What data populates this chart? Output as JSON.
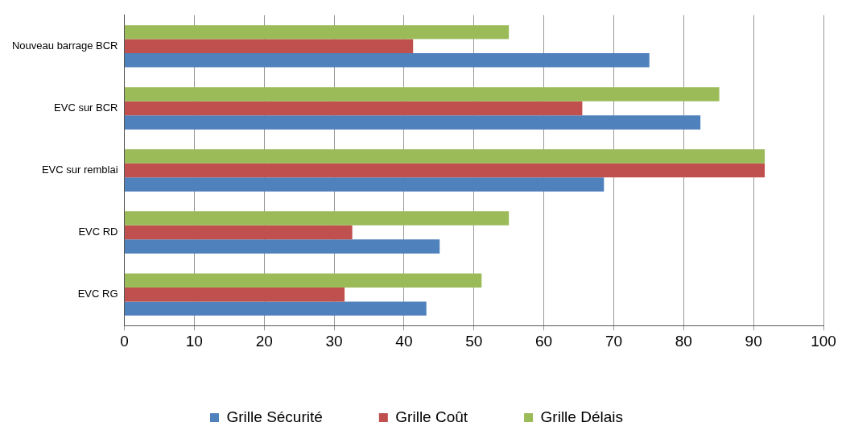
{
  "chart_data": {
    "type": "bar",
    "orientation": "horizontal",
    "categories": [
      "Nouveau barrage BCR",
      "EVC sur BCR",
      "EVC sur remblai",
      "EVC RD",
      "EVC RG"
    ],
    "series": [
      {
        "name": "Grille Sécurité",
        "color": "#4f81bd",
        "values": [
          75.1,
          82.4,
          68.6,
          45.1,
          43.2
        ]
      },
      {
        "name": "Grille Coût",
        "color": "#c0504d",
        "values": [
          41.3,
          65.5,
          91.6,
          32.6,
          31.5
        ]
      },
      {
        "name": "Grille Délais",
        "color": "#9bbb59",
        "values": [
          55,
          85.1,
          91.6,
          55,
          51.1
        ]
      }
    ],
    "xlim": [
      0,
      100
    ],
    "xticks": [
      0,
      10,
      20,
      30,
      40,
      50,
      60,
      70,
      80,
      90,
      100
    ],
    "grid": "x",
    "legend": "bottom"
  }
}
